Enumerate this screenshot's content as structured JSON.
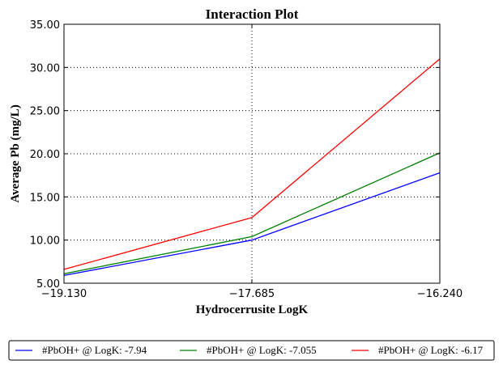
{
  "chart_data": {
    "type": "line",
    "title": "Interaction Plot",
    "xlabel": "Hydrocerrusite LogK",
    "ylabel": "Average Pb (mg/L)",
    "x": [
      -19.13,
      -17.685,
      -16.24
    ],
    "x_tick_labels": [
      "−19.130",
      "−17.685",
      "−16.240"
    ],
    "xlim": [
      -19.13,
      -16.24
    ],
    "ylim": [
      5.0,
      35.0
    ],
    "y_ticks": [
      5,
      10,
      15,
      20,
      25,
      30,
      35
    ],
    "y_tick_labels": [
      "5.00",
      "10.00",
      "15.00",
      "20.00",
      "25.00",
      "30.00",
      "35.00"
    ],
    "grid": true,
    "legend_position": "bottom",
    "series": [
      {
        "name": "#PbOH+ @ LogK: -7.94",
        "color": "#0000ff",
        "values": [
          5.9,
          10.0,
          17.8
        ]
      },
      {
        "name": "#PbOH+ @ LogK: -7.055",
        "color": "#008000",
        "values": [
          6.1,
          10.4,
          20.1
        ]
      },
      {
        "name": "#PbOH+ @ LogK: -6.17",
        "color": "#ff0000",
        "values": [
          6.6,
          12.6,
          31.0
        ]
      }
    ]
  }
}
